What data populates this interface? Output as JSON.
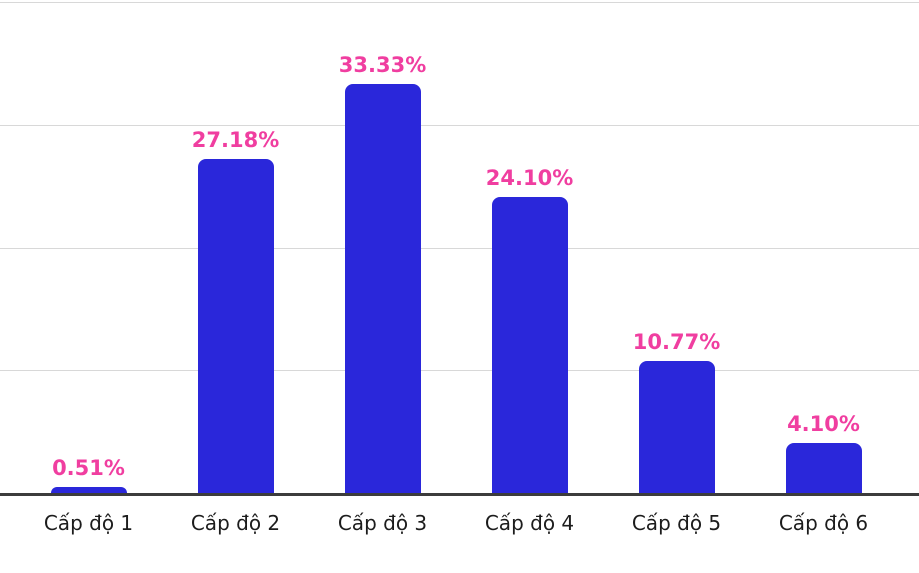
{
  "chart_data": {
    "type": "bar",
    "title": "",
    "xlabel": "",
    "ylabel": "",
    "categories": [
      "Cấp độ 1",
      "Cấp độ 2",
      "Cấp độ 3",
      "Cấp độ 4",
      "Cấp độ 5",
      "Cấp độ 6"
    ],
    "values": [
      0.51,
      27.18,
      33.33,
      24.1,
      10.77,
      4.1
    ],
    "value_labels": [
      "0.51%",
      "27.18%",
      "33.33%",
      "24.10%",
      "10.77%",
      "4.10%"
    ],
    "ylim": [
      0,
      40
    ],
    "gridline_values": [
      10,
      20,
      30,
      40
    ],
    "grid": true,
    "legend": false,
    "colors": {
      "bar": "#2A27DA",
      "value_label": "#F03EA0",
      "gridline": "#D8D8D8",
      "axis_line": "#3C3C3C",
      "category_label": "#1C1C1C",
      "background": "#FFFFFF"
    }
  }
}
